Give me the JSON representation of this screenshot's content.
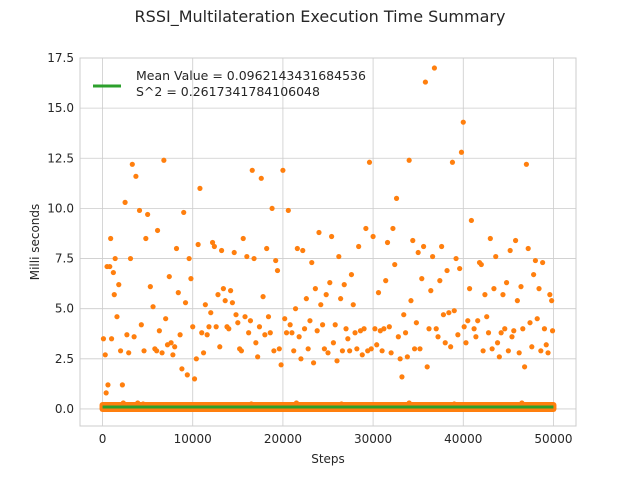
{
  "chart_data": {
    "type": "scatter",
    "title": "RSSI_Multilateration Execution Time Summary",
    "xlabel": "Steps",
    "ylabel": "Milli seconds",
    "xlim": [
      -2500,
      52500
    ],
    "ylim": [
      -0.85,
      17.5
    ],
    "xticks": [
      0,
      10000,
      20000,
      30000,
      40000,
      50000
    ],
    "yticks": [
      0.0,
      2.5,
      5.0,
      7.5,
      10.0,
      12.5,
      15.0,
      17.5
    ],
    "xtick_labels": [
      "0",
      "10000",
      "20000",
      "30000",
      "40000",
      "50000"
    ],
    "ytick_labels": [
      "0.0",
      "2.5",
      "5.0",
      "7.5",
      "10.0",
      "12.5",
      "15.0",
      "17.5"
    ],
    "grid": true,
    "legend_position": "top-left",
    "legend": {
      "mean_label": "Mean Value = 0.0962143431684536",
      "s2_label": "S^2 = 0.2617341784106048"
    },
    "series": [
      {
        "kind": "scatter",
        "color": "#ff7f0e",
        "points": [
          [
            100,
            3.5
          ],
          [
            300,
            2.7
          ],
          [
            400,
            0.8
          ],
          [
            500,
            7.1
          ],
          [
            600,
            1.2
          ],
          [
            800,
            7.1
          ],
          [
            900,
            8.5
          ],
          [
            1000,
            3.5
          ],
          [
            1200,
            6.8
          ],
          [
            1300,
            5.7
          ],
          [
            1400,
            7.5
          ],
          [
            1600,
            4.6
          ],
          [
            1800,
            6.2
          ],
          [
            2000,
            2.9
          ],
          [
            2200,
            1.2
          ],
          [
            2300,
            0.3
          ],
          [
            2500,
            10.3
          ],
          [
            2700,
            3.7
          ],
          [
            2900,
            2.8
          ],
          [
            3100,
            7.5
          ],
          [
            3300,
            12.2
          ],
          [
            3500,
            3.6
          ],
          [
            3700,
            11.6
          ],
          [
            3900,
            0.3
          ],
          [
            4100,
            9.9
          ],
          [
            4300,
            4.2
          ],
          [
            4600,
            2.9
          ],
          [
            4800,
            8.5
          ],
          [
            5000,
            9.7
          ],
          [
            5300,
            6.1
          ],
          [
            5600,
            5.1
          ],
          [
            5800,
            3.0
          ],
          [
            6000,
            2.9
          ],
          [
            6100,
            8.9
          ],
          [
            6300,
            3.9
          ],
          [
            6600,
            2.8
          ],
          [
            6800,
            12.4
          ],
          [
            7000,
            4.5
          ],
          [
            7200,
            3.2
          ],
          [
            7400,
            6.6
          ],
          [
            7600,
            3.3
          ],
          [
            7800,
            2.7
          ],
          [
            8000,
            3.1
          ],
          [
            8200,
            8.0
          ],
          [
            8400,
            5.8
          ],
          [
            8600,
            3.7
          ],
          [
            8800,
            2.0
          ],
          [
            9000,
            9.8
          ],
          [
            9200,
            5.3
          ],
          [
            9400,
            1.7
          ],
          [
            9600,
            7.5
          ],
          [
            9800,
            6.5
          ],
          [
            10000,
            4.1
          ],
          [
            10200,
            1.5
          ],
          [
            10400,
            2.5
          ],
          [
            10600,
            8.2
          ],
          [
            10800,
            11.0
          ],
          [
            11000,
            3.8
          ],
          [
            11200,
            2.8
          ],
          [
            11400,
            5.2
          ],
          [
            11600,
            3.7
          ],
          [
            11800,
            4.1
          ],
          [
            12000,
            4.8
          ],
          [
            12200,
            8.3
          ],
          [
            12400,
            8.1
          ],
          [
            12600,
            4.1
          ],
          [
            12800,
            5.7
          ],
          [
            13000,
            3.1
          ],
          [
            13200,
            7.9
          ],
          [
            13400,
            6.0
          ],
          [
            13600,
            5.4
          ],
          [
            13800,
            4.1
          ],
          [
            14000,
            4.0
          ],
          [
            14200,
            5.9
          ],
          [
            14400,
            5.3
          ],
          [
            14600,
            7.8
          ],
          [
            14800,
            4.7
          ],
          [
            15000,
            4.3
          ],
          [
            15200,
            3.0
          ],
          [
            15400,
            2.9
          ],
          [
            15600,
            8.5
          ],
          [
            15800,
            4.6
          ],
          [
            16000,
            7.6
          ],
          [
            16200,
            3.8
          ],
          [
            16400,
            4.4
          ],
          [
            16600,
            11.9
          ],
          [
            16800,
            7.5
          ],
          [
            17000,
            3.3
          ],
          [
            17200,
            2.6
          ],
          [
            17400,
            4.1
          ],
          [
            17600,
            11.5
          ],
          [
            17800,
            5.6
          ],
          [
            18000,
            3.7
          ],
          [
            18200,
            8.0
          ],
          [
            18400,
            4.6
          ],
          [
            18600,
            3.8
          ],
          [
            18800,
            10.0
          ],
          [
            19000,
            2.9
          ],
          [
            19200,
            7.4
          ],
          [
            19400,
            6.9
          ],
          [
            19600,
            3.0
          ],
          [
            19800,
            2.2
          ],
          [
            20000,
            11.9
          ],
          [
            20200,
            4.5
          ],
          [
            20400,
            3.8
          ],
          [
            20600,
            9.9
          ],
          [
            20800,
            4.2
          ],
          [
            21000,
            3.8
          ],
          [
            21200,
            2.9
          ],
          [
            21400,
            5.0
          ],
          [
            21600,
            8.0
          ],
          [
            21800,
            3.6
          ],
          [
            22000,
            2.5
          ],
          [
            22200,
            7.9
          ],
          [
            22400,
            4.0
          ],
          [
            22600,
            5.5
          ],
          [
            22800,
            3.0
          ],
          [
            23000,
            4.4
          ],
          [
            23200,
            7.3
          ],
          [
            23400,
            2.3
          ],
          [
            23600,
            6.0
          ],
          [
            23800,
            3.9
          ],
          [
            24000,
            8.8
          ],
          [
            24200,
            5.2
          ],
          [
            24400,
            4.2
          ],
          [
            24600,
            3.0
          ],
          [
            24800,
            5.7
          ],
          [
            25000,
            2.8
          ],
          [
            25200,
            6.3
          ],
          [
            25400,
            8.6
          ],
          [
            25600,
            3.3
          ],
          [
            25800,
            4.2
          ],
          [
            26000,
            2.4
          ],
          [
            26200,
            7.6
          ],
          [
            26400,
            5.5
          ],
          [
            26600,
            2.9
          ],
          [
            26800,
            6.2
          ],
          [
            27000,
            4.0
          ],
          [
            27200,
            3.5
          ],
          [
            27400,
            2.9
          ],
          [
            27600,
            6.7
          ],
          [
            27800,
            5.2
          ],
          [
            28000,
            3.8
          ],
          [
            28200,
            3.0
          ],
          [
            28400,
            8.1
          ],
          [
            28600,
            3.9
          ],
          [
            28800,
            2.7
          ],
          [
            29000,
            4.0
          ],
          [
            29200,
            9.0
          ],
          [
            29400,
            2.9
          ],
          [
            29600,
            12.3
          ],
          [
            29800,
            3.0
          ],
          [
            30000,
            8.6
          ],
          [
            30200,
            4.0
          ],
          [
            30400,
            3.2
          ],
          [
            30600,
            5.8
          ],
          [
            30800,
            3.9
          ],
          [
            31000,
            2.9
          ],
          [
            31200,
            4.0
          ],
          [
            31400,
            6.4
          ],
          [
            31600,
            8.3
          ],
          [
            31800,
            4.1
          ],
          [
            32000,
            2.8
          ],
          [
            32200,
            9.0
          ],
          [
            32400,
            7.2
          ],
          [
            32600,
            10.5
          ],
          [
            32800,
            3.6
          ],
          [
            33000,
            2.5
          ],
          [
            33200,
            1.6
          ],
          [
            33400,
            4.7
          ],
          [
            33600,
            3.8
          ],
          [
            33800,
            2.6
          ],
          [
            34000,
            12.4
          ],
          [
            34200,
            5.4
          ],
          [
            34400,
            8.4
          ],
          [
            34600,
            3.0
          ],
          [
            34800,
            4.3
          ],
          [
            35000,
            7.8
          ],
          [
            35200,
            3.0
          ],
          [
            35400,
            6.5
          ],
          [
            35600,
            8.1
          ],
          [
            35800,
            16.3
          ],
          [
            36000,
            2.1
          ],
          [
            36200,
            4.0
          ],
          [
            36400,
            5.9
          ],
          [
            36600,
            7.6
          ],
          [
            36800,
            17.0
          ],
          [
            37000,
            4.0
          ],
          [
            37200,
            3.6
          ],
          [
            37400,
            6.4
          ],
          [
            37600,
            8.1
          ],
          [
            37800,
            4.7
          ],
          [
            38000,
            3.3
          ],
          [
            38200,
            6.9
          ],
          [
            38400,
            4.8
          ],
          [
            38600,
            3.1
          ],
          [
            38800,
            12.3
          ],
          [
            39000,
            4.9
          ],
          [
            39200,
            7.5
          ],
          [
            39400,
            3.7
          ],
          [
            39600,
            7.0
          ],
          [
            39800,
            12.8
          ],
          [
            40000,
            14.3
          ],
          [
            40100,
            4.1
          ],
          [
            40300,
            3.3
          ],
          [
            40500,
            4.4
          ],
          [
            40700,
            6.0
          ],
          [
            40900,
            9.4
          ],
          [
            41200,
            4.0
          ],
          [
            41400,
            3.6
          ],
          [
            41600,
            4.4
          ],
          [
            41800,
            7.3
          ],
          [
            42000,
            7.2
          ],
          [
            42200,
            2.9
          ],
          [
            42400,
            5.7
          ],
          [
            42600,
            4.6
          ],
          [
            42800,
            3.8
          ],
          [
            43000,
            8.5
          ],
          [
            43200,
            3.0
          ],
          [
            43400,
            6.0
          ],
          [
            43600,
            7.6
          ],
          [
            43800,
            3.3
          ],
          [
            44000,
            2.6
          ],
          [
            44200,
            3.8
          ],
          [
            44400,
            5.7
          ],
          [
            44600,
            4.0
          ],
          [
            44800,
            6.3
          ],
          [
            45000,
            2.9
          ],
          [
            45200,
            7.9
          ],
          [
            45400,
            3.6
          ],
          [
            45600,
            3.9
          ],
          [
            45800,
            8.4
          ],
          [
            46000,
            5.4
          ],
          [
            46200,
            2.8
          ],
          [
            46400,
            6.1
          ],
          [
            46600,
            4.0
          ],
          [
            46800,
            2.1
          ],
          [
            47000,
            12.2
          ],
          [
            47200,
            8.0
          ],
          [
            47400,
            4.3
          ],
          [
            47600,
            3.1
          ],
          [
            47800,
            6.7
          ],
          [
            48000,
            7.4
          ],
          [
            48200,
            4.5
          ],
          [
            48400,
            6.0
          ],
          [
            48600,
            2.9
          ],
          [
            48800,
            7.3
          ],
          [
            49000,
            4.0
          ],
          [
            49200,
            3.2
          ],
          [
            49400,
            2.8
          ],
          [
            49600,
            5.7
          ],
          [
            49800,
            5.4
          ],
          [
            49900,
            3.9
          ],
          [
            1500,
            0.2
          ],
          [
            3000,
            0.15
          ],
          [
            4500,
            0.25
          ],
          [
            7000,
            0.2
          ],
          [
            9500,
            0.1
          ],
          [
            11500,
            0.2
          ],
          [
            14000,
            0.15
          ],
          [
            16500,
            0.25
          ],
          [
            19000,
            0.2
          ],
          [
            21500,
            0.3
          ],
          [
            24000,
            0.2
          ],
          [
            26500,
            0.25
          ],
          [
            29000,
            0.2
          ],
          [
            31500,
            0.15
          ],
          [
            34000,
            0.3
          ],
          [
            36500,
            0.2
          ],
          [
            39000,
            0.25
          ],
          [
            41500,
            0.2
          ],
          [
            44000,
            0.15
          ],
          [
            46500,
            0.3
          ],
          [
            49000,
            0.2
          ],
          [
            2000,
            0.05
          ],
          [
            6000,
            0.05
          ],
          [
            10000,
            0.05
          ],
          [
            15000,
            0.05
          ],
          [
            20000,
            0.05
          ],
          [
            25000,
            0.05
          ],
          [
            30000,
            0.05
          ],
          [
            35000,
            0.05
          ],
          [
            40000,
            0.05
          ],
          [
            45000,
            0.05
          ],
          [
            50000,
            0.05
          ]
        ],
        "band": {
          "from": 0,
          "to": 50000,
          "ymin": 0.0,
          "ymax": 0.2
        }
      },
      {
        "kind": "line",
        "color": "#2ca02c",
        "x": [
          0,
          50000
        ],
        "y": [
          0.0962143431684536,
          0.0962143431684536
        ]
      }
    ]
  }
}
